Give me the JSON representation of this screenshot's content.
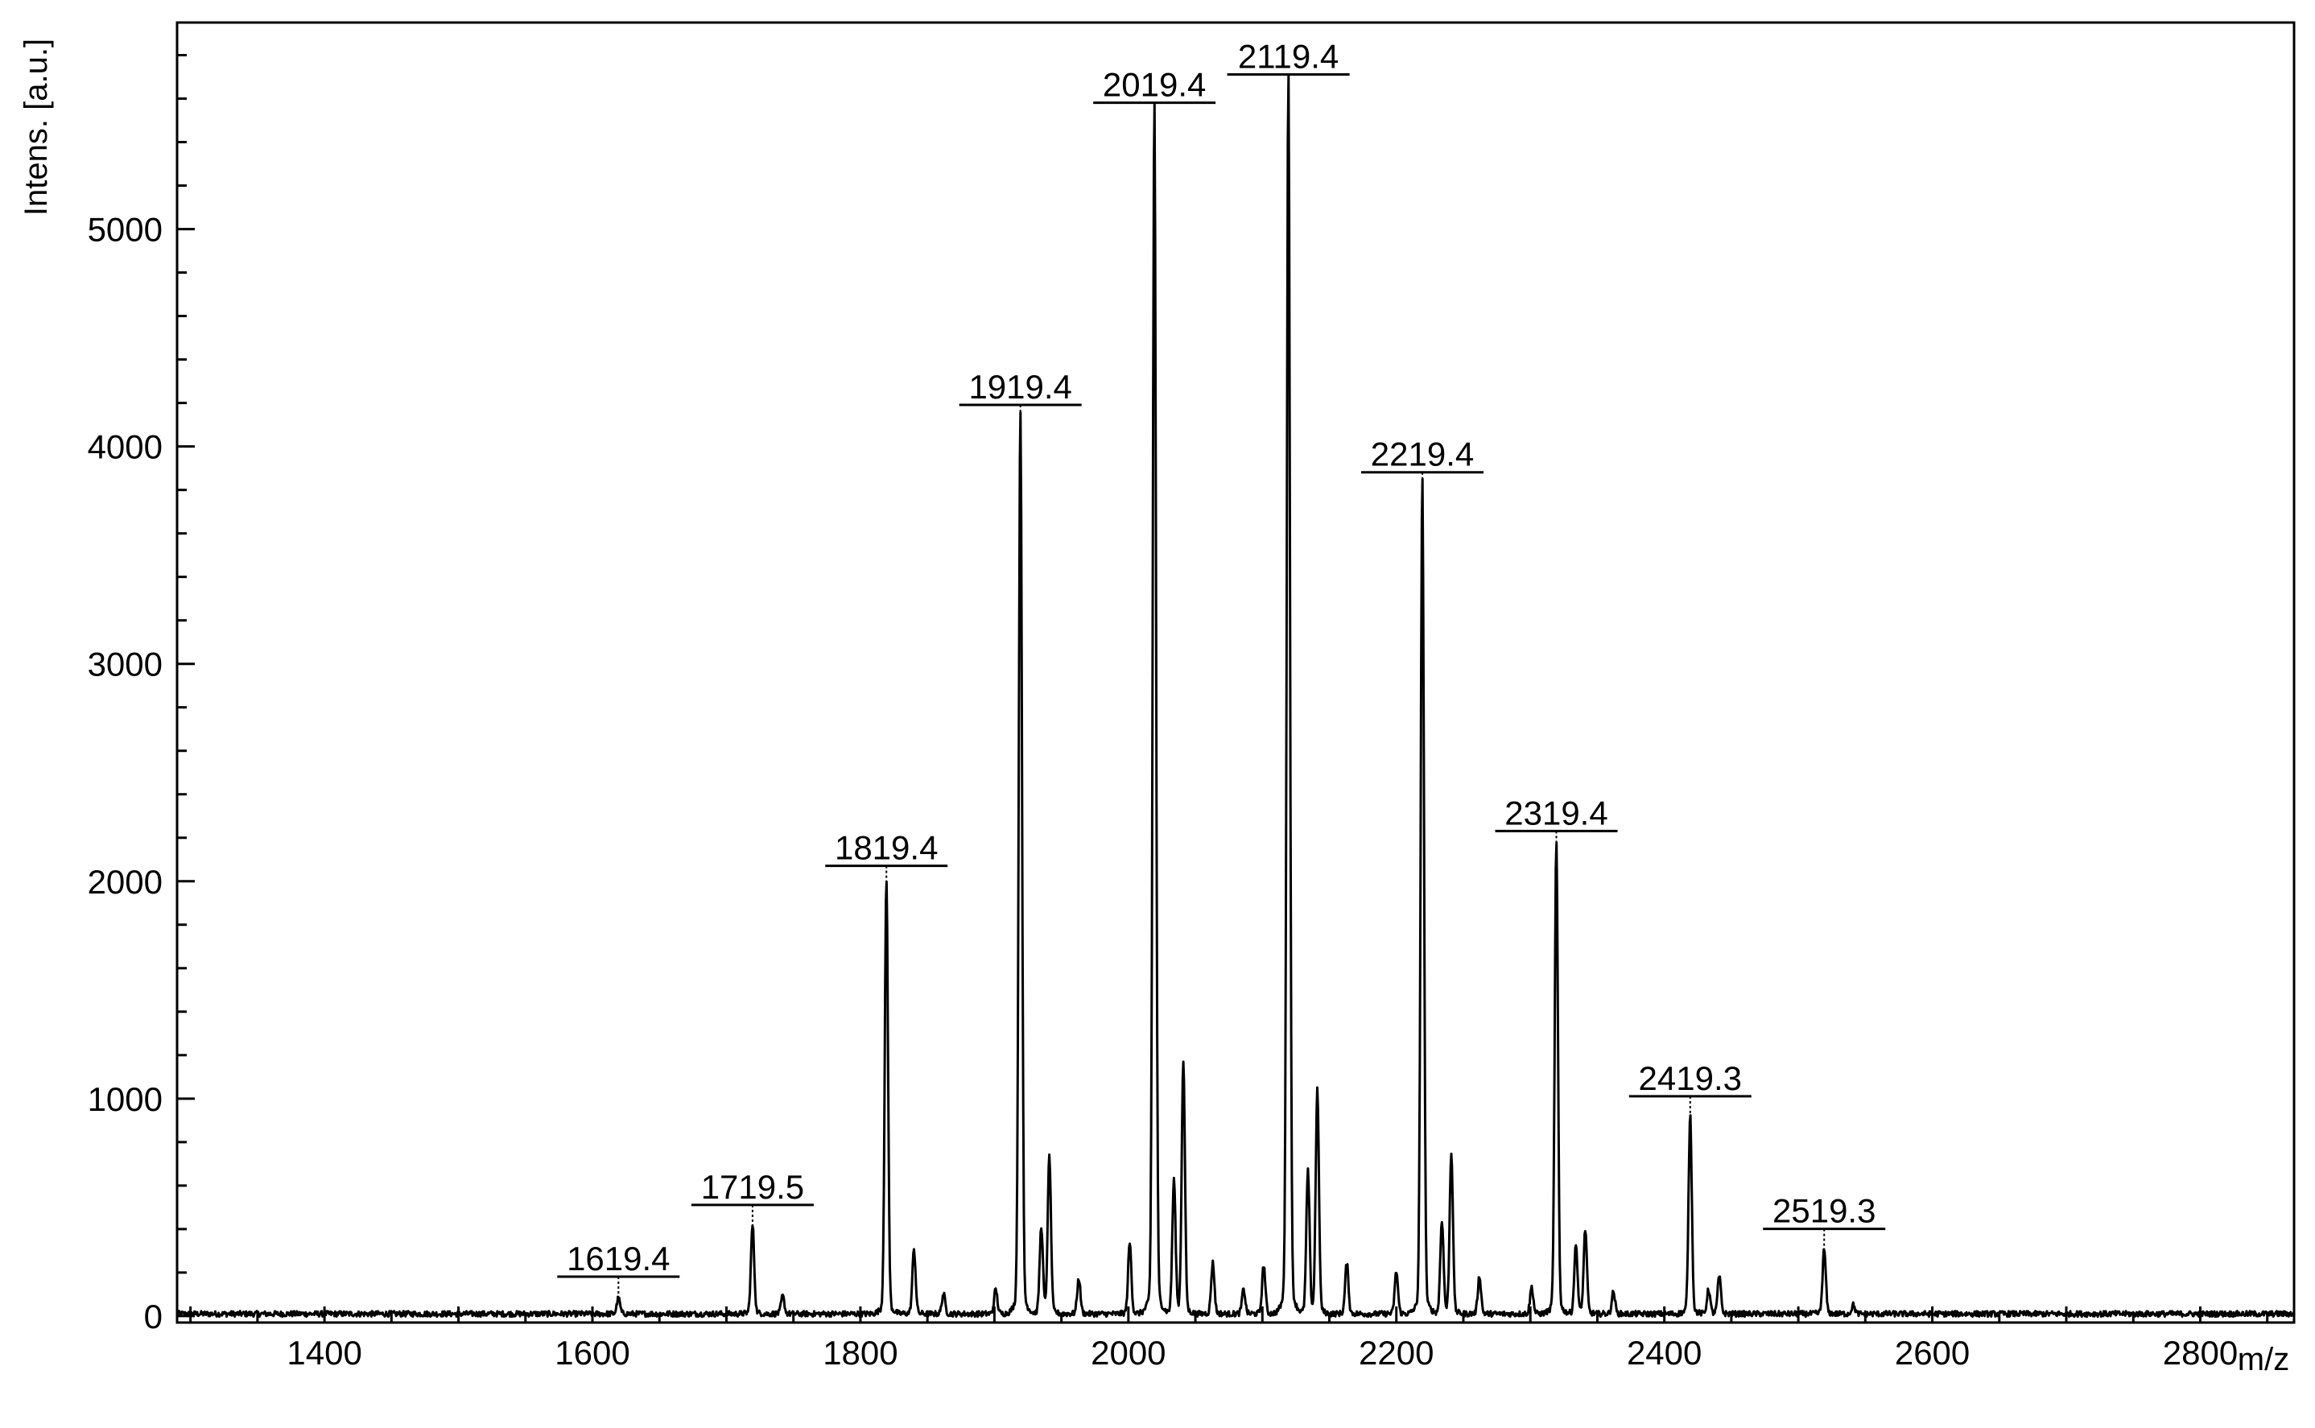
{
  "chart_data": {
    "type": "line",
    "title": "",
    "xlabel": "m/z",
    "ylabel": "Intens. [a.u.]",
    "xlim": [
      1290,
      2870
    ],
    "ylim": [
      -30,
      5950
    ],
    "grid": false,
    "legend": "none",
    "line_color": "#000000",
    "x_ticks": [
      1400,
      1600,
      1800,
      2000,
      2200,
      2400,
      2600,
      2800
    ],
    "x_tick_labels": [
      "1400",
      "1600",
      "1800",
      "2000",
      "2200",
      "2400",
      "2600",
      "2800"
    ],
    "y_ticks": [
      0,
      1000,
      2000,
      3000,
      4000,
      5000
    ],
    "y_tick_labels": [
      "0",
      "1000",
      "2000",
      "3000",
      "4000",
      "5000"
    ],
    "peaks": [
      {
        "mz": 1619.4,
        "intensity": 70,
        "label": "1619.4"
      },
      {
        "mz": 1719.5,
        "intensity": 400,
        "label": "1719.5"
      },
      {
        "mz": 1742,
        "intensity": 80
      },
      {
        "mz": 1819.4,
        "intensity": 1960,
        "label": "1819.4"
      },
      {
        "mz": 1840,
        "intensity": 290
      },
      {
        "mz": 1862,
        "intensity": 90
      },
      {
        "mz": 1901,
        "intensity": 110
      },
      {
        "mz": 1919.4,
        "intensity": 4080,
        "label": "1919.4"
      },
      {
        "mz": 1935,
        "intensity": 390
      },
      {
        "mz": 1941,
        "intensity": 710
      },
      {
        "mz": 1963,
        "intensity": 160
      },
      {
        "mz": 2001,
        "intensity": 320
      },
      {
        "mz": 2019.4,
        "intensity": 5470,
        "label": "2019.4"
      },
      {
        "mz": 2034,
        "intensity": 600
      },
      {
        "mz": 2041,
        "intensity": 1140
      },
      {
        "mz": 2063,
        "intensity": 230
      },
      {
        "mz": 2086,
        "intensity": 110
      },
      {
        "mz": 2101,
        "intensity": 220
      },
      {
        "mz": 2119.4,
        "intensity": 5600,
        "label": "2119.4"
      },
      {
        "mz": 2134,
        "intensity": 640
      },
      {
        "mz": 2141,
        "intensity": 1010
      },
      {
        "mz": 2163,
        "intensity": 230
      },
      {
        "mz": 2200,
        "intensity": 190
      },
      {
        "mz": 2219.4,
        "intensity": 3770,
        "label": "2219.4"
      },
      {
        "mz": 2234,
        "intensity": 420
      },
      {
        "mz": 2241,
        "intensity": 730
      },
      {
        "mz": 2262,
        "intensity": 170
      },
      {
        "mz": 2301,
        "intensity": 120
      },
      {
        "mz": 2319.4,
        "intensity": 2120,
        "label": "2319.4"
      },
      {
        "mz": 2334,
        "intensity": 310
      },
      {
        "mz": 2341,
        "intensity": 380
      },
      {
        "mz": 2362,
        "intensity": 100
      },
      {
        "mz": 2419.3,
        "intensity": 900,
        "label": "2419.3"
      },
      {
        "mz": 2433,
        "intensity": 110
      },
      {
        "mz": 2441,
        "intensity": 170
      },
      {
        "mz": 2519.3,
        "intensity": 290,
        "label": "2519.3"
      },
      {
        "mz": 2541,
        "intensity": 40
      }
    ]
  }
}
